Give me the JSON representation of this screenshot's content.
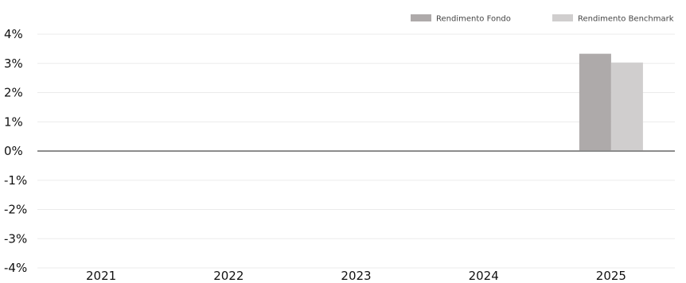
{
  "chart_data": {
    "type": "bar",
    "categories": [
      "2021",
      "2022",
      "2023",
      "2024",
      "2025"
    ],
    "series": [
      {
        "name": "Rendimento Fondo",
        "values": [
          null,
          null,
          null,
          null,
          3.33
        ],
        "color": "#aeaaaa"
      },
      {
        "name": "Rendimento Benchmark",
        "values": [
          null,
          null,
          null,
          null,
          3.03
        ],
        "color": "#d0cece"
      }
    ],
    "y_ticks": [
      "4%",
      "3%",
      "2%",
      "1%",
      "0%",
      "-1%",
      "-2%",
      "-3%",
      "-4%"
    ],
    "ylim": [
      -4,
      4
    ],
    "grid": true,
    "legend_position": "top-right",
    "title": "",
    "xlabel": "",
    "ylabel": ""
  }
}
